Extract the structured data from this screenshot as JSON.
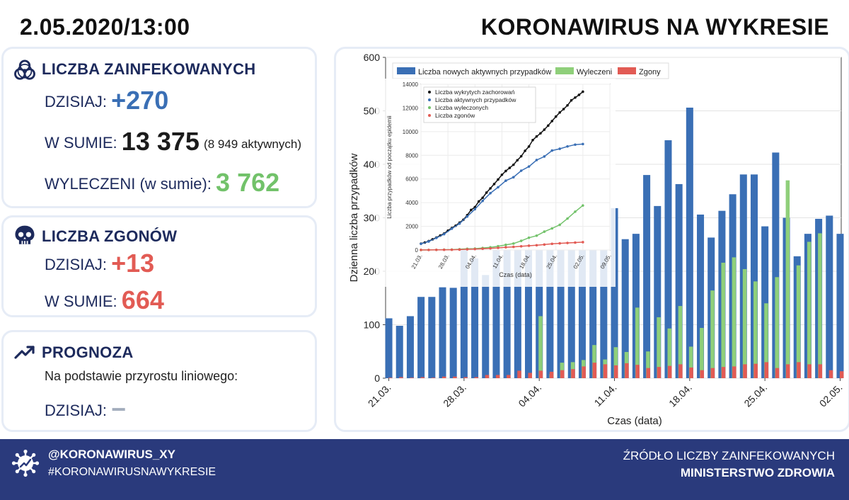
{
  "header": {
    "date": "2.05.2020/13:00",
    "title": "KORONAWIRUS NA WYKRESIE"
  },
  "infected": {
    "title": "LICZBA ZAINFEKOWANYCH",
    "today_label": "DZISIAJ:",
    "today_value": "+270",
    "total_label": "W SUMIE:",
    "total_value": "13 375",
    "active_note": "(8 949 aktywnych)",
    "recovered_label": "WYLECZENI (w sumie):",
    "recovered_value": "3 762"
  },
  "deaths": {
    "title": "LICZBA ZGONÓW",
    "today_label": "DZISIAJ:",
    "today_value": "+13",
    "total_label": "W SUMIE:",
    "total_value": "664"
  },
  "forecast": {
    "title": "PROGNOZA",
    "subtitle": "Na podstawie przyrostu liniowego:",
    "today_label": "DZISIAJ:",
    "today_value": "−"
  },
  "footer": {
    "handle": "@KORONAWIRUS_XY",
    "hashtag": "#KORONAWIRUSNAWYKRESIE",
    "source_label": "ŹRÓDŁO LICZBY ZAINFEKOWANYCH",
    "source_name": "MINISTERSTWO ZDROWIA"
  },
  "colors": {
    "new_active": "#3a6fb5",
    "recovered": "#8fcf7a",
    "deaths": "#e25b54"
  },
  "chart_data": [
    {
      "type": "bar",
      "xlabel": "Czas (data)",
      "ylabel": "Dzienna liczba przypadków",
      "ylim": [
        0,
        600
      ],
      "yticks": [
        0,
        100,
        200,
        300,
        400,
        500,
        600
      ],
      "xticks": [
        "21.03.",
        "28.03.",
        "04.04.",
        "11.04.",
        "18.04.",
        "25.04.",
        "02.05."
      ],
      "xtick_index": [
        0,
        7,
        14,
        21,
        28,
        35,
        42
      ],
      "legend_position": "top",
      "grid": true,
      "categories": [
        "21.03.",
        "22.03.",
        "23.03.",
        "24.03.",
        "25.03.",
        "26.03.",
        "27.03.",
        "28.03.",
        "29.03.",
        "30.03.",
        "31.03.",
        "01.04.",
        "02.04.",
        "03.04.",
        "04.04.",
        "05.04.",
        "06.04.",
        "07.04.",
        "08.04.",
        "09.04.",
        "10.04.",
        "11.04.",
        "12.04.",
        "13.04.",
        "14.04.",
        "15.04.",
        "16.04.",
        "17.04.",
        "18.04.",
        "19.04.",
        "20.04.",
        "21.04.",
        "22.04.",
        "23.04.",
        "24.04.",
        "25.04.",
        "26.04.",
        "27.04.",
        "28.04.",
        "29.04.",
        "30.04.",
        "01.05.",
        "02.05."
      ],
      "series": [
        {
          "name": "Liczba nowych aktywnych przypadków",
          "values": [
            112,
            98,
            116,
            152,
            152,
            170,
            169,
            249,
            224,
            193,
            256,
            243,
            392,
            437,
            475,
            311,
            435,
            357,
            421,
            372,
            380,
            318,
            260,
            270,
            380,
            322,
            445,
            363,
            506,
            306,
            263,
            313,
            344,
            381,
            381,
            284,
            422,
            300,
            228,
            270,
            298,
            304,
            270
          ]
        },
        {
          "name": "Wyleczeni",
          "values": [
            0,
            0,
            0,
            0,
            0,
            0,
            0,
            0,
            0,
            0,
            0,
            0,
            0,
            0,
            116,
            8,
            29,
            30,
            34,
            62,
            35,
            58,
            49,
            132,
            50,
            114,
            93,
            135,
            59,
            94,
            164,
            216,
            226,
            204,
            181,
            140,
            189,
            370,
            211,
            255,
            271,
            0,
            0
          ]
        },
        {
          "name": "Zgony",
          "values": [
            1,
            2,
            1,
            2,
            1,
            3,
            3,
            2,
            2,
            6,
            6,
            6,
            14,
            10,
            14,
            12,
            15,
            17,
            22,
            29,
            26,
            24,
            28,
            25,
            19,
            21,
            23,
            26,
            20,
            15,
            19,
            21,
            22,
            26,
            27,
            30,
            19,
            26,
            30,
            26,
            26,
            15,
            13
          ]
        }
      ]
    },
    {
      "type": "line",
      "xlabel": "Czas (data)",
      "ylabel": "Liczba przypadków od początku epidemii",
      "ylim": [
        0,
        14000
      ],
      "yticks": [
        0,
        2000,
        4000,
        6000,
        8000,
        10000,
        12000,
        14000
      ],
      "xticks": [
        "21.03.",
        "28.03.",
        "04.04.",
        "11.04.",
        "18.04.",
        "25.04.",
        "02.05.",
        "09.05."
      ],
      "xlim_days": [
        0,
        49
      ],
      "legend_position": "top-left",
      "series": [
        {
          "name": "Liczba wykrytych zachorowań",
          "days": [
            0,
            1,
            2,
            3,
            4,
            5,
            6,
            7,
            8,
            9,
            10,
            11,
            12,
            13,
            14,
            15,
            16,
            17,
            18,
            19,
            20,
            21,
            22,
            23,
            24,
            25,
            26,
            27,
            28,
            29,
            30,
            31,
            32,
            33,
            34,
            35,
            36,
            37,
            38,
            39,
            40,
            41,
            42
          ],
          "values": [
            536,
            634,
            749,
            901,
            1051,
            1221,
            1389,
            1638,
            1862,
            2055,
            2311,
            2554,
            2946,
            3383,
            3627,
            4102,
            4413,
            4848,
            5205,
            5575,
            5955,
            6356,
            6674,
            6934,
            7202,
            7582,
            7918,
            8379,
            8742,
            9287,
            9593,
            9856,
            10169,
            10511,
            10892,
            11273,
            11617,
            11902,
            12218,
            12640,
            12877,
            13105,
            13375
          ]
        },
        {
          "name": "Liczba aktywnych przypadków",
          "days": [
            0,
            2,
            4,
            6,
            8,
            10,
            12,
            14,
            16,
            18,
            20,
            22,
            24,
            26,
            28,
            30,
            32,
            34,
            36,
            38,
            40,
            42
          ],
          "values": [
            520,
            720,
            1020,
            1340,
            1800,
            2230,
            2830,
            3450,
            4150,
            4800,
            5300,
            5850,
            6150,
            6700,
            7050,
            7600,
            7900,
            8400,
            8550,
            8750,
            8900,
            8949
          ]
        },
        {
          "name": "Liczba wyleczonych",
          "days": [
            0,
            2,
            4,
            6,
            8,
            10,
            12,
            14,
            16,
            18,
            20,
            22,
            24,
            26,
            28,
            30,
            32,
            34,
            36,
            38,
            40,
            42
          ],
          "values": [
            1,
            7,
            13,
            29,
            32,
            65,
            100,
            116,
            172,
            226,
            316,
            437,
            546,
            772,
            1037,
            1210,
            1550,
            1823,
            2132,
            2655,
            3236,
            3762
          ]
        },
        {
          "name": "Liczba zgonów",
          "days": [
            0,
            2,
            4,
            6,
            8,
            10,
            12,
            14,
            16,
            18,
            20,
            22,
            24,
            26,
            28,
            30,
            32,
            34,
            36,
            38,
            40,
            42
          ],
          "values": [
            5,
            8,
            14,
            16,
            22,
            33,
            57,
            79,
            107,
            139,
            181,
            232,
            263,
            314,
            360,
            401,
            459,
            524,
            562,
            596,
            628,
            664
          ]
        }
      ]
    }
  ]
}
